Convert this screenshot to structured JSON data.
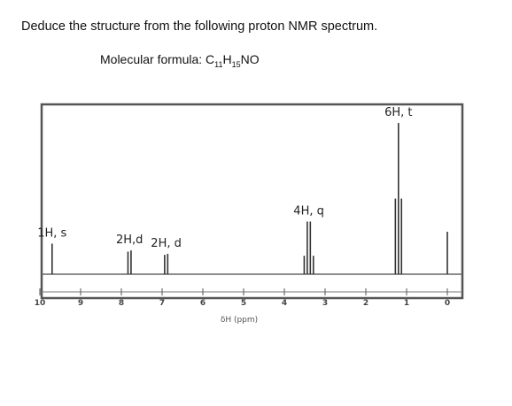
{
  "question": "Deduce the structure from the following proton NMR spectrum.",
  "formula": {
    "label": "Molecular formula:",
    "c": "C",
    "c_count": "11",
    "h": "H",
    "h_count": "15",
    "rest": "NO"
  },
  "chart_data": {
    "type": "line",
    "title": "",
    "xlabel": "δH (ppm)",
    "ylabel": "",
    "xlim": [
      10,
      0
    ],
    "ticks": [
      10,
      9,
      8,
      7,
      6,
      5,
      4,
      3,
      2,
      1,
      0
    ],
    "peaks": [
      {
        "id": "peak-1h-s",
        "shift": 9.7,
        "height": 0.18,
        "lines": 1,
        "label": "1H, s"
      },
      {
        "id": "peak-2h-d-a",
        "shift": 7.8,
        "height": 0.14,
        "lines": 2,
        "label": "2H,d"
      },
      {
        "id": "peak-2h-d-b",
        "shift": 6.9,
        "height": 0.12,
        "lines": 2,
        "label": "2H, d"
      },
      {
        "id": "peak-4h-q",
        "shift": 3.4,
        "height": 0.31,
        "lines": 4,
        "label": "4H, q"
      },
      {
        "id": "peak-6h-t",
        "shift": 1.2,
        "height": 0.89,
        "lines": 3,
        "label": "6H, t"
      },
      {
        "id": "peak-tms",
        "shift": 0.0,
        "height": 0.25,
        "lines": 1,
        "label": ""
      }
    ]
  }
}
